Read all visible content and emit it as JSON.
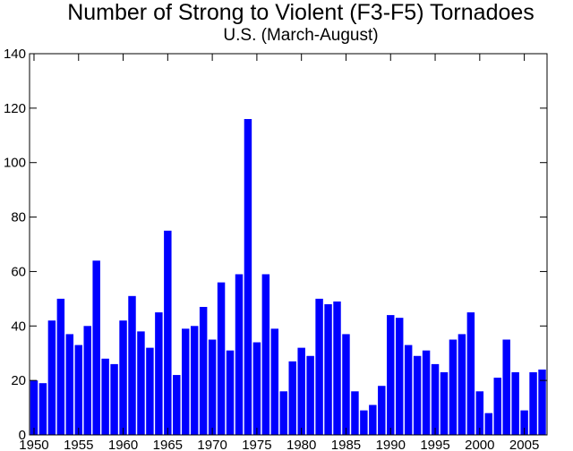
{
  "chart_data": {
    "type": "bar",
    "title": "Number of Strong to Violent (F3-F5) Tornadoes",
    "subtitle": "U.S.  (March-August)",
    "xlabel": "",
    "ylabel": "",
    "x": [
      1950,
      1951,
      1952,
      1953,
      1954,
      1955,
      1956,
      1957,
      1958,
      1959,
      1960,
      1961,
      1962,
      1963,
      1964,
      1965,
      1966,
      1967,
      1968,
      1969,
      1970,
      1971,
      1972,
      1973,
      1974,
      1975,
      1976,
      1977,
      1978,
      1979,
      1980,
      1981,
      1982,
      1983,
      1984,
      1985,
      1986,
      1987,
      1988,
      1989,
      1990,
      1991,
      1992,
      1993,
      1994,
      1995,
      1996,
      1997,
      1998,
      1999,
      2000,
      2001,
      2002,
      2003,
      2004,
      2005,
      2006,
      2007
    ],
    "values": [
      20,
      19,
      42,
      50,
      37,
      33,
      40,
      64,
      28,
      26,
      42,
      51,
      38,
      32,
      45,
      75,
      22,
      39,
      40,
      47,
      35,
      56,
      31,
      59,
      116,
      34,
      59,
      39,
      16,
      27,
      32,
      29,
      50,
      48,
      49,
      37,
      16,
      9,
      11,
      18,
      44,
      43,
      33,
      29,
      31,
      26,
      23,
      35,
      37,
      45,
      16,
      8,
      21,
      35,
      23,
      9,
      23,
      24
    ],
    "ylim": [
      0,
      140
    ],
    "yticks": [
      0,
      20,
      40,
      60,
      80,
      100,
      120,
      140
    ],
    "ytick_labels": [
      "0",
      "20",
      "40",
      "60",
      "80",
      "100",
      "120",
      "140"
    ],
    "xticks": [
      1950,
      1955,
      1960,
      1965,
      1970,
      1975,
      1980,
      1985,
      1990,
      1995,
      2000,
      2005
    ],
    "xtick_labels": [
      "1950",
      "1955",
      "1960",
      "1965",
      "1970",
      "1975",
      "1980",
      "1985",
      "1990",
      "1995",
      "2000",
      "2005"
    ],
    "bar_color": "#0000ff",
    "grid": false
  }
}
